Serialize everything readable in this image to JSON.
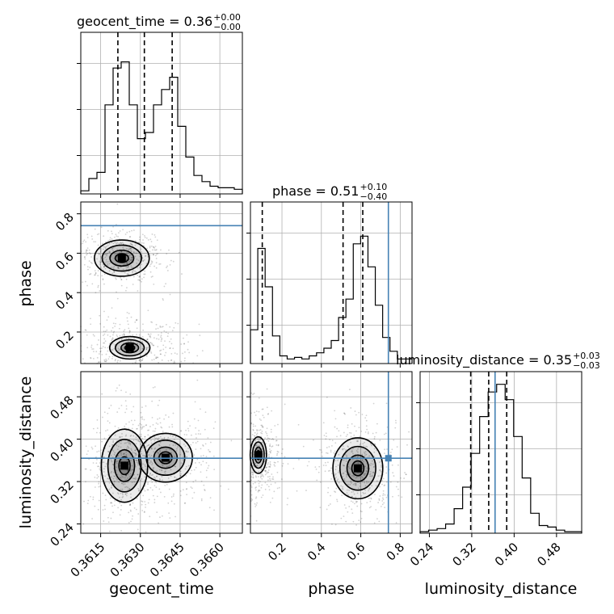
{
  "chart_data": {
    "type": "corner",
    "parameters": [
      {
        "name": "geocent_time",
        "range": [
          0.36075,
          0.36685
        ],
        "ticks": [
          "0.3615",
          "0.3630",
          "0.3645",
          "0.3660"
        ],
        "tick_values": [
          0.3615,
          0.363,
          0.3645,
          0.366
        ],
        "axis_label": "geocent_time",
        "title_main": "geocent_time = 0.36",
        "title_plus": "+0.00",
        "title_minus": "−0.00",
        "quantiles": [
          0.36215,
          0.36315,
          0.3642
        ],
        "injection": null,
        "hist_values": [
          0.02,
          0.1,
          0.14,
          0.58,
          0.82,
          0.86,
          0.58,
          0.36,
          0.4,
          0.58,
          0.68,
          0.76,
          0.44,
          0.24,
          0.12,
          0.08,
          0.05,
          0.04,
          0.04,
          0.03
        ]
      },
      {
        "name": "phase",
        "range": [
          0.04,
          0.86
        ],
        "ticks": [
          "0.2",
          "0.4",
          "0.6",
          "0.8"
        ],
        "tick_values": [
          0.2,
          0.4,
          0.6,
          0.8
        ],
        "axis_label": "phase",
        "title_main": "phase = 0.51",
        "title_plus": "+0.10",
        "title_minus": "−0.40",
        "quantiles": [
          0.1,
          0.51,
          0.61
        ],
        "injection": 0.74,
        "hist_values": [
          0.22,
          0.75,
          0.5,
          0.18,
          0.05,
          0.03,
          0.04,
          0.03,
          0.05,
          0.07,
          0.1,
          0.15,
          0.3,
          0.42,
          0.78,
          0.83,
          0.63,
          0.38,
          0.17,
          0.08,
          0.03,
          0.03
        ]
      },
      {
        "name": "luminosity_distance",
        "range": [
          0.2225,
          0.5275
        ],
        "ticks": [
          "0.24",
          "0.32",
          "0.40",
          "0.48"
        ],
        "tick_values": [
          0.24,
          0.32,
          0.4,
          0.48
        ],
        "axis_label": "luminosity_distance",
        "title_main": "luminosity_distance = 0.35",
        "title_plus": "+0.03",
        "title_minus": "−0.03",
        "quantiles": [
          0.318,
          0.352,
          0.386
        ],
        "injection": 0.364,
        "hist_values": [
          0.01,
          0.02,
          0.03,
          0.06,
          0.16,
          0.3,
          0.52,
          0.76,
          0.92,
          0.97,
          0.87,
          0.63,
          0.36,
          0.13,
          0.05,
          0.04,
          0.02,
          0.01,
          0.01
        ]
      }
    ],
    "histogram_y_ticks_shown_without_labels": true,
    "injection_color": "#4682b4",
    "quantile_style": "dashed",
    "grid": true,
    "pairs": [
      {
        "x": "geocent_time",
        "y": "phase",
        "density_peaks": [
          {
            "x": 0.3623,
            "y": 0.575,
            "sx": 0.00045,
            "sy": 0.04,
            "w": 1.0
          },
          {
            "x": 0.3626,
            "y": 0.12,
            "sx": 0.0006,
            "sy": 0.045,
            "w": 0.55
          }
        ],
        "contour_levels": [
          0.25,
          0.5,
          0.75,
          0.92
        ]
      },
      {
        "x": "geocent_time",
        "y": "luminosity_distance",
        "density_peaks": [
          {
            "x": 0.3624,
            "y": 0.35,
            "sx": 0.00038,
            "sy": 0.03,
            "w": 1.0
          },
          {
            "x": 0.36395,
            "y": 0.365,
            "sx": 0.00055,
            "sy": 0.025,
            "w": 0.8
          }
        ],
        "contour_levels": [
          0.25,
          0.5,
          0.75,
          0.92
        ]
      },
      {
        "x": "phase",
        "y": "luminosity_distance",
        "density_peaks": [
          {
            "x": 0.585,
            "y": 0.345,
            "sx": 0.055,
            "sy": 0.025,
            "w": 1.0
          },
          {
            "x": 0.08,
            "y": 0.37,
            "sx": 0.03,
            "sy": 0.025,
            "w": 0.6
          }
        ],
        "contour_levels": [
          0.25,
          0.5,
          0.75,
          0.92
        ]
      }
    ]
  }
}
